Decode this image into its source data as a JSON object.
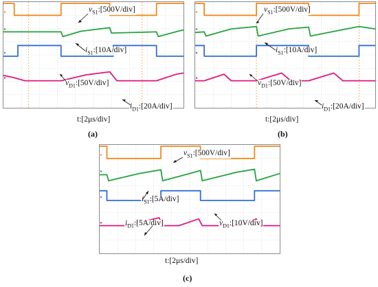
{
  "colors": {
    "vs1": "#f08a1c",
    "is1": "#22a33a",
    "vd1": "#2f6fd6",
    "id1": "#e0177e",
    "grid": "#c9c9c9",
    "cursor": "#f0a040"
  },
  "chart_data": [
    {
      "type": "line",
      "panel_label": "(a)",
      "x_axis_label": "t:[2μs/div]",
      "x_divisions": 10,
      "y_divisions": 8,
      "annotations": [
        {
          "var": "v",
          "sub": "S1",
          "scale": ":[500V/div]"
        },
        {
          "var": "i",
          "sub": "S1",
          "scale": ":[10A/div]"
        },
        {
          "var": "v",
          "sub": "D1",
          "scale": ":[50V/div]"
        },
        {
          "var": "i",
          "sub": "D1",
          "scale": ":[20A/div]"
        }
      ],
      "series": [
        {
          "name": "vS1",
          "color_key": "vs1",
          "y_div": 1.0,
          "points": [
            [
              0,
              1
            ],
            [
              0.6,
              1
            ],
            [
              0.6,
              0
            ],
            [
              3.2,
              0
            ],
            [
              3.2,
              1
            ],
            [
              5.9,
              1
            ],
            [
              5.9,
              0
            ],
            [
              8.5,
              0
            ],
            [
              8.5,
              1
            ],
            [
              10,
              1
            ]
          ]
        },
        {
          "name": "iS1",
          "color_key": "is1",
          "y_div": 2.3,
          "points": [
            [
              0,
              0.05
            ],
            [
              3.2,
              0.05
            ],
            [
              3.3,
              -0.35
            ],
            [
              4.3,
              0.1
            ],
            [
              5.9,
              0.4
            ],
            [
              6.0,
              -0.05
            ],
            [
              8.5,
              0.05
            ],
            [
              8.6,
              -0.35
            ],
            [
              9.8,
              0.15
            ],
            [
              10,
              0.2
            ]
          ]
        },
        {
          "name": "vD1",
          "color_key": "vd1",
          "y_div": 4.1,
          "points": [
            [
              0,
              0
            ],
            [
              0.8,
              0
            ],
            [
              0.8,
              0.9
            ],
            [
              3.2,
              0.9
            ],
            [
              3.2,
              0
            ],
            [
              6.1,
              0
            ],
            [
              6.1,
              0.9
            ],
            [
              8.5,
              0.9
            ],
            [
              8.5,
              0
            ],
            [
              10,
              0
            ]
          ]
        },
        {
          "name": "iD1",
          "color_key": "id1",
          "y_div": 6.0,
          "points": [
            [
              0,
              0.5
            ],
            [
              0.6,
              0.3
            ],
            [
              1.2,
              0.05
            ],
            [
              3.2,
              0.05
            ],
            [
              4.6,
              0.55
            ],
            [
              5.9,
              0.8
            ],
            [
              6.3,
              0.05
            ],
            [
              8.5,
              0.05
            ],
            [
              9.6,
              0.6
            ],
            [
              10,
              0.7
            ]
          ]
        }
      ],
      "cursors_x": [
        1.4,
        7.7
      ]
    },
    {
      "type": "line",
      "panel_label": "(b)",
      "x_axis_label": "t:[2μs/div]",
      "x_divisions": 10,
      "y_divisions": 8,
      "annotations": [
        {
          "var": "v",
          "sub": "S1",
          "scale": ":[500V/div]"
        },
        {
          "var": "i",
          "sub": "S1",
          "scale": ":[10A/div]"
        },
        {
          "var": "v",
          "sub": "D1",
          "scale": ":[50V/div]"
        },
        {
          "var": "i",
          "sub": "D1",
          "scale": ":[20A/div]"
        }
      ],
      "series": [
        {
          "name": "vS1",
          "color_key": "vs1",
          "y_div": 1.0,
          "points": [
            [
              0,
              1
            ],
            [
              0.5,
              1
            ],
            [
              0.5,
              0
            ],
            [
              3.4,
              0
            ],
            [
              3.4,
              1
            ],
            [
              6.3,
              1
            ],
            [
              6.3,
              0
            ],
            [
              9.1,
              0
            ],
            [
              9.1,
              1
            ],
            [
              10,
              1
            ]
          ]
        },
        {
          "name": "iS1",
          "color_key": "is1",
          "y_div": 2.3,
          "points": [
            [
              0,
              0.0
            ],
            [
              0.5,
              0.05
            ],
            [
              0.6,
              -0.3
            ],
            [
              2.0,
              0.3
            ],
            [
              3.4,
              0.5
            ],
            [
              3.5,
              -0.3
            ],
            [
              5.2,
              0.3
            ],
            [
              6.3,
              0.45
            ],
            [
              6.4,
              -0.3
            ],
            [
              8.4,
              0.3
            ],
            [
              9.1,
              0.5
            ],
            [
              10,
              0.3
            ]
          ]
        },
        {
          "name": "vD1",
          "color_key": "vd1",
          "y_div": 4.1,
          "points": [
            [
              0,
              0.9
            ],
            [
              0.5,
              0.9
            ],
            [
              0.5,
              0
            ],
            [
              3.4,
              0
            ],
            [
              3.4,
              0.9
            ],
            [
              6.3,
              0.9
            ],
            [
              6.3,
              0
            ],
            [
              9.1,
              0
            ],
            [
              9.1,
              0.9
            ],
            [
              10,
              0.9
            ]
          ]
        },
        {
          "name": "iD1",
          "color_key": "id1",
          "y_div": 6.0,
          "points": [
            [
              0,
              0.05
            ],
            [
              0.5,
              0.05
            ],
            [
              1.6,
              0.6
            ],
            [
              2.0,
              0.05
            ],
            [
              3.4,
              0.05
            ],
            [
              4.8,
              0.7
            ],
            [
              5.3,
              0.05
            ],
            [
              6.3,
              0.05
            ],
            [
              7.7,
              0.7
            ],
            [
              8.2,
              0.05
            ],
            [
              10,
              0.05
            ]
          ]
        }
      ],
      "cursors_x": [
        3.4,
        9.1
      ]
    },
    {
      "type": "line",
      "panel_label": "(c)",
      "x_axis_label": "t:[2μs/div]",
      "x_divisions": 10,
      "y_divisions": 8,
      "annotations": [
        {
          "var": "v",
          "sub": "S1",
          "scale": ":[500V/div]"
        },
        {
          "var": "i",
          "sub": "S1",
          "scale": ":[5A/div]"
        },
        {
          "var": "i",
          "sub": "D1",
          "scale": ":[5A/div]"
        },
        {
          "var": "v",
          "sub": "D1",
          "scale": ":[10V/div]"
        }
      ],
      "series": [
        {
          "name": "vS1",
          "color_key": "vs1",
          "y_div": 1.0,
          "points": [
            [
              0,
              1
            ],
            [
              0.4,
              1
            ],
            [
              0.4,
              0
            ],
            [
              3.4,
              0
            ],
            [
              3.4,
              1
            ],
            [
              5.6,
              1
            ],
            [
              5.6,
              0
            ],
            [
              8.6,
              0
            ],
            [
              8.6,
              1
            ],
            [
              10,
              1
            ]
          ]
        },
        {
          "name": "iS1",
          "color_key": "is1",
          "y_div": 2.2,
          "points": [
            [
              0,
              0
            ],
            [
              0.4,
              0
            ],
            [
              0.5,
              -0.5
            ],
            [
              2.2,
              0.1
            ],
            [
              3.4,
              0.4
            ],
            [
              3.5,
              -0.5
            ],
            [
              5.0,
              0.1
            ],
            [
              5.6,
              0.35
            ],
            [
              5.7,
              -0.5
            ],
            [
              7.6,
              0.2
            ],
            [
              8.6,
              0.45
            ],
            [
              8.7,
              -0.5
            ],
            [
              10,
              0.1
            ]
          ]
        },
        {
          "name": "vD1",
          "color_key": "vd1",
          "y_div": 4.1,
          "points": [
            [
              0,
              0.8
            ],
            [
              0.4,
              0.8
            ],
            [
              0.4,
              0
            ],
            [
              3.4,
              0
            ],
            [
              3.4,
              0.8
            ],
            [
              5.6,
              0.8
            ],
            [
              5.6,
              0
            ],
            [
              8.6,
              0
            ],
            [
              8.6,
              0.8
            ],
            [
              10,
              0.8
            ]
          ]
        },
        {
          "name": "iD1",
          "color_key": "id1",
          "y_div": 6.0,
          "points": [
            [
              0,
              0.05
            ],
            [
              1.4,
              0.05
            ],
            [
              3.3,
              0.7
            ],
            [
              3.5,
              0.05
            ],
            [
              4.4,
              0.05
            ],
            [
              5.5,
              0.6
            ],
            [
              5.7,
              0.05
            ],
            [
              7.8,
              0.05
            ],
            [
              8.7,
              0.6
            ],
            [
              8.9,
              0.05
            ],
            [
              10,
              0.05
            ]
          ]
        }
      ],
      "cursors_x": []
    }
  ]
}
